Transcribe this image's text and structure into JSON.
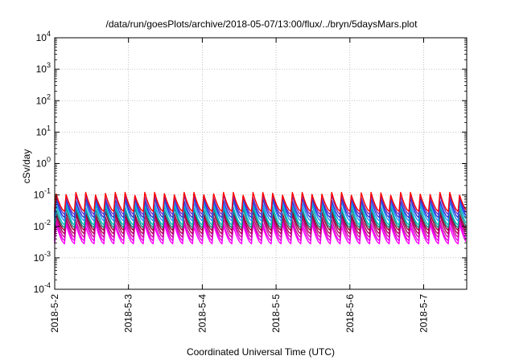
{
  "chart_data": {
    "type": "line",
    "title": "/data/run/goesPlots/archive/2018-05-07/13:00/flux/../bryn/5daysMars.plot",
    "xlabel": "Coordinated Universal Time (UTC)",
    "ylabel": "cSv/day",
    "yscale": "log",
    "ylim": [
      0.0001,
      10000
    ],
    "xlim": [
      "2018-05-02T00:00",
      "2018-05-07T14:00"
    ],
    "grid": true,
    "y_ticks": [
      {
        "base": "10",
        "exp": "-4"
      },
      {
        "base": "10",
        "exp": "-3"
      },
      {
        "base": "10",
        "exp": "-2"
      },
      {
        "base": "10",
        "exp": "-1"
      },
      {
        "base": "10",
        "exp": "0"
      },
      {
        "base": "10",
        "exp": "1"
      },
      {
        "base": "10",
        "exp": "2"
      },
      {
        "base": "10",
        "exp": "3"
      },
      {
        "base": "10",
        "exp": "4"
      }
    ],
    "x_ticks": [
      "2018-5-2",
      "2018-5-3",
      "2018-5-4",
      "2018-5-5",
      "2018-5-6",
      "2018-5-7"
    ],
    "x_tick_dates": [
      "2018-05-02",
      "2018-05-03",
      "2018-05-04",
      "2018-05-05",
      "2018-05-06",
      "2018-05-07"
    ],
    "sawtooth_period_hours": 3.2,
    "series": [
      {
        "color": "#ff00ff",
        "peak": 0.012,
        "trough": 0.0028
      },
      {
        "color": "#e600e6",
        "peak": 0.015,
        "trough": 0.0035
      },
      {
        "color": "#cc1199",
        "peak": 0.019,
        "trough": 0.0045
      },
      {
        "color": "#b00060",
        "peak": 0.024,
        "trough": 0.0058
      },
      {
        "color": "#990033",
        "peak": 0.03,
        "trough": 0.0075
      },
      {
        "color": "#208080",
        "peak": 0.04,
        "trough": 0.009
      },
      {
        "color": "#00bbbb",
        "peak": 0.05,
        "trough": 0.011
      },
      {
        "color": "#1e90ff",
        "peak": 0.065,
        "trough": 0.015
      },
      {
        "color": "#3333cc",
        "peak": 0.08,
        "trough": 0.019
      },
      {
        "color": "#6633cc",
        "peak": 0.1,
        "trough": 0.024
      },
      {
        "color": "#ff0000",
        "peak": 0.12,
        "trough": 0.03
      }
    ]
  }
}
